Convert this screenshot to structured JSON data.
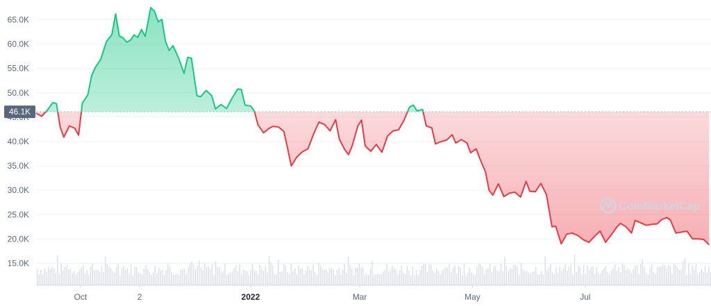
{
  "chart_data": {
    "type": "area",
    "title": "",
    "xlabel": "",
    "ylabel": "",
    "ylim": [
      10500,
      68500
    ],
    "y_ticks": [
      15000,
      20000,
      25000,
      30000,
      35000,
      40000,
      45000,
      50000,
      55000,
      60000,
      65000
    ],
    "y_tick_labels": [
      "15.0K",
      "20.0K",
      "25.0K",
      "30.0K",
      "35.0K",
      "40.0K",
      "45.0K",
      "50.0K",
      "55.0K",
      "60.0K",
      "65.0K"
    ],
    "x_ticks": [
      {
        "date": "2021-10-01",
        "label": "Oct",
        "bold": false
      },
      {
        "date": "2021-11-02",
        "label": "2",
        "bold": false
      },
      {
        "date": "2022-01-01",
        "label": "2022",
        "bold": true
      },
      {
        "date": "2022-03-01",
        "label": "Mar",
        "bold": false
      },
      {
        "date": "2022-05-01",
        "label": "May",
        "bold": false
      },
      {
        "date": "2022-07-01",
        "label": "Jul",
        "bold": false
      }
    ],
    "x_range": [
      "2021-09-07",
      "2022-09-07"
    ],
    "baseline": {
      "value": 46100,
      "label": "46.1K"
    },
    "colors": {
      "up": "#16c784",
      "down": "#ea3943",
      "baseline_badge": "#58667e",
      "volume": "#d9dee6"
    },
    "watermark": "CoinMarketCap",
    "grid": true,
    "series": [
      {
        "values": [
          [
            "2021-09-07",
            45800
          ],
          [
            "2021-09-10",
            45200
          ],
          [
            "2021-09-13",
            46400
          ],
          [
            "2021-09-16",
            48000
          ],
          [
            "2021-09-18",
            47800
          ],
          [
            "2021-09-20",
            43000
          ],
          [
            "2021-09-22",
            40900
          ],
          [
            "2021-09-25",
            43200
          ],
          [
            "2021-09-28",
            42700
          ],
          [
            "2021-09-30",
            41300
          ],
          [
            "2021-10-02",
            47900
          ],
          [
            "2021-10-05",
            49600
          ],
          [
            "2021-10-07",
            53500
          ],
          [
            "2021-10-09",
            55200
          ],
          [
            "2021-10-12",
            56900
          ],
          [
            "2021-10-15",
            60500
          ],
          [
            "2021-10-18",
            62000
          ],
          [
            "2021-10-20",
            66200
          ],
          [
            "2021-10-22",
            61700
          ],
          [
            "2021-10-24",
            61300
          ],
          [
            "2021-10-26",
            60400
          ],
          [
            "2021-10-28",
            60800
          ],
          [
            "2021-10-30",
            61900
          ],
          [
            "2021-11-01",
            61400
          ],
          [
            "2021-11-03",
            63000
          ],
          [
            "2021-11-05",
            61600
          ],
          [
            "2021-11-08",
            67500
          ],
          [
            "2021-11-10",
            66800
          ],
          [
            "2021-11-12",
            64600
          ],
          [
            "2021-11-14",
            65100
          ],
          [
            "2021-11-16",
            60500
          ],
          [
            "2021-11-18",
            58700
          ],
          [
            "2021-11-20",
            59700
          ],
          [
            "2021-11-23",
            57200
          ],
          [
            "2021-11-26",
            54000
          ],
          [
            "2021-11-28",
            57300
          ],
          [
            "2021-11-30",
            57100
          ],
          [
            "2021-12-03",
            49400
          ],
          [
            "2021-12-05",
            49200
          ],
          [
            "2021-12-08",
            50500
          ],
          [
            "2021-12-11",
            49400
          ],
          [
            "2021-12-13",
            46700
          ],
          [
            "2021-12-16",
            47600
          ],
          [
            "2021-12-19",
            46800
          ],
          [
            "2021-12-22",
            48900
          ],
          [
            "2021-12-25",
            50800
          ],
          [
            "2021-12-27",
            50700
          ],
          [
            "2021-12-29",
            47500
          ],
          [
            "2022-01-01",
            47300
          ],
          [
            "2022-01-03",
            46300
          ],
          [
            "2022-01-05",
            43400
          ],
          [
            "2022-01-08",
            41800
          ],
          [
            "2022-01-11",
            42700
          ],
          [
            "2022-01-13",
            43100
          ],
          [
            "2022-01-16",
            43000
          ],
          [
            "2022-01-19",
            42100
          ],
          [
            "2022-01-21",
            38600
          ],
          [
            "2022-01-23",
            35000
          ],
          [
            "2022-01-26",
            36800
          ],
          [
            "2022-01-29",
            37900
          ],
          [
            "2022-02-01",
            38500
          ],
          [
            "2022-02-04",
            41500
          ],
          [
            "2022-02-07",
            44000
          ],
          [
            "2022-02-10",
            43500
          ],
          [
            "2022-02-13",
            42200
          ],
          [
            "2022-02-16",
            44500
          ],
          [
            "2022-02-18",
            40500
          ],
          [
            "2022-02-21",
            38300
          ],
          [
            "2022-02-23",
            37300
          ],
          [
            "2022-02-25",
            39200
          ],
          [
            "2022-02-28",
            43200
          ],
          [
            "2022-03-02",
            44400
          ],
          [
            "2022-03-04",
            39100
          ],
          [
            "2022-03-07",
            38000
          ],
          [
            "2022-03-10",
            39400
          ],
          [
            "2022-03-13",
            37800
          ],
          [
            "2022-03-16",
            41100
          ],
          [
            "2022-03-19",
            42200
          ],
          [
            "2022-03-22",
            42400
          ],
          [
            "2022-03-25",
            44400
          ],
          [
            "2022-03-28",
            47100
          ],
          [
            "2022-03-30",
            47500
          ],
          [
            "2022-04-01",
            46300
          ],
          [
            "2022-04-04",
            46600
          ],
          [
            "2022-04-06",
            43200
          ],
          [
            "2022-04-09",
            42800
          ],
          [
            "2022-04-11",
            39500
          ],
          [
            "2022-04-14",
            40000
          ],
          [
            "2022-04-17",
            40300
          ],
          [
            "2022-04-20",
            41400
          ],
          [
            "2022-04-22",
            39700
          ],
          [
            "2022-04-25",
            40400
          ],
          [
            "2022-04-28",
            39700
          ],
          [
            "2022-04-30",
            37700
          ],
          [
            "2022-05-03",
            38500
          ],
          [
            "2022-05-05",
            36500
          ],
          [
            "2022-05-08",
            33800
          ],
          [
            "2022-05-10",
            30000
          ],
          [
            "2022-05-12",
            29000
          ],
          [
            "2022-05-15",
            31300
          ],
          [
            "2022-05-18",
            28700
          ],
          [
            "2022-05-21",
            29400
          ],
          [
            "2022-05-24",
            29600
          ],
          [
            "2022-05-27",
            28600
          ],
          [
            "2022-05-30",
            31800
          ],
          [
            "2022-06-01",
            29800
          ],
          [
            "2022-06-04",
            29700
          ],
          [
            "2022-06-07",
            31400
          ],
          [
            "2022-06-10",
            29100
          ],
          [
            "2022-06-13",
            22500
          ],
          [
            "2022-06-15",
            22600
          ],
          [
            "2022-06-18",
            19000
          ],
          [
            "2022-06-21",
            21000
          ],
          [
            "2022-06-24",
            21200
          ],
          [
            "2022-06-27",
            20700
          ],
          [
            "2022-06-30",
            19800
          ],
          [
            "2022-07-03",
            19300
          ],
          [
            "2022-07-06",
            20500
          ],
          [
            "2022-07-09",
            21600
          ],
          [
            "2022-07-12",
            19300
          ],
          [
            "2022-07-15",
            20800
          ],
          [
            "2022-07-18",
            22400
          ],
          [
            "2022-07-20",
            23200
          ],
          [
            "2022-07-23",
            22500
          ],
          [
            "2022-07-26",
            21200
          ],
          [
            "2022-07-28",
            23800
          ],
          [
            "2022-07-31",
            23300
          ],
          [
            "2022-08-03",
            22800
          ],
          [
            "2022-08-06",
            23000
          ],
          [
            "2022-08-09",
            23100
          ],
          [
            "2022-08-11",
            23900
          ],
          [
            "2022-08-14",
            24400
          ],
          [
            "2022-08-16",
            23900
          ],
          [
            "2022-08-19",
            21200
          ],
          [
            "2022-08-22",
            21400
          ],
          [
            "2022-08-25",
            21600
          ],
          [
            "2022-08-28",
            20000
          ],
          [
            "2022-08-31",
            20000
          ],
          [
            "2022-09-03",
            19900
          ],
          [
            "2022-09-06",
            18800
          ]
        ]
      }
    ]
  }
}
